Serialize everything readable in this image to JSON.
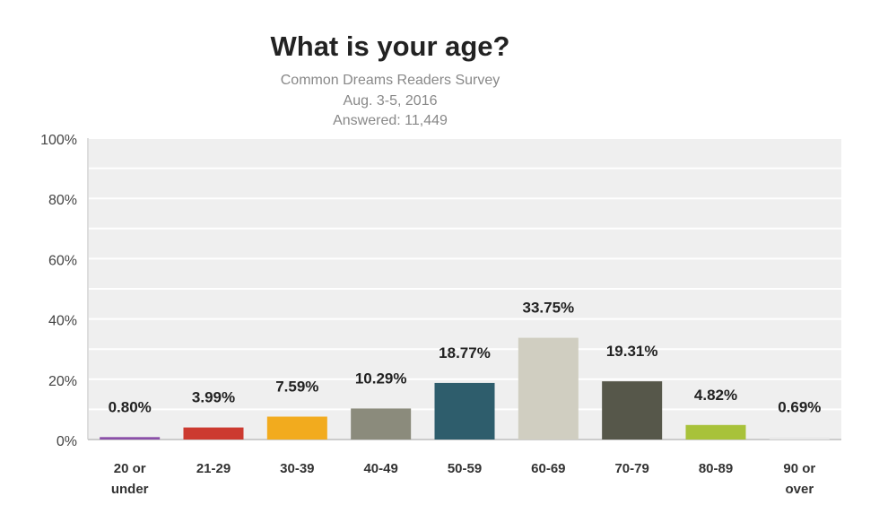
{
  "chart_data": {
    "type": "bar",
    "title": "What is your age?",
    "subtitle": [
      "Common Dreams Readers Survey",
      "Aug. 3-5, 2016",
      "Answered:  11,449"
    ],
    "categories": [
      [
        "20 or",
        "under"
      ],
      [
        "21-29"
      ],
      [
        "30-39"
      ],
      [
        "40-49"
      ],
      [
        "50-59"
      ],
      [
        "60-69"
      ],
      [
        "70-79"
      ],
      [
        "80-89"
      ],
      [
        "90 or",
        "over"
      ]
    ],
    "values": [
      0.8,
      3.99,
      7.59,
      10.29,
      18.77,
      33.75,
      19.31,
      4.82,
      0.69
    ],
    "data_labels": [
      "0.80%",
      "3.99%",
      "7.59%",
      "10.29%",
      "18.77%",
      "33.75%",
      "19.31%",
      "4.82%",
      "0.69%"
    ],
    "colors": [
      "#8a4fa8",
      "#cc3a30",
      "#f2ab1e",
      "#8b8b7c",
      "#2e5d6c",
      "#d0cec1",
      "#56574a",
      "#a8c23a",
      "#e8e8e8"
    ],
    "ylim": [
      0,
      100
    ],
    "yticks": [
      0,
      20,
      40,
      60,
      80,
      100
    ],
    "ytick_labels": [
      "0%",
      "20%",
      "40%",
      "60%",
      "80%",
      "100%"
    ],
    "grid": true,
    "legend": "none"
  }
}
